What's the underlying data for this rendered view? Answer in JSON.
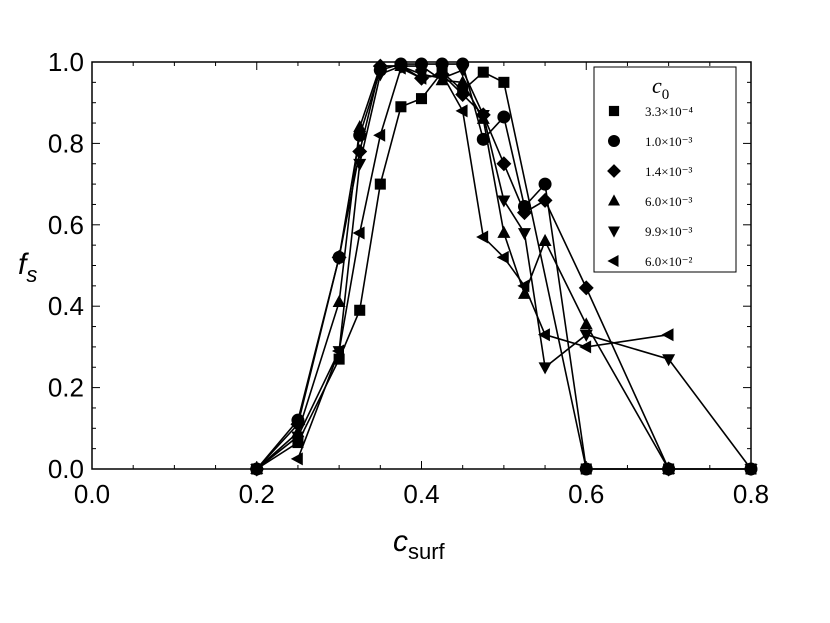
{
  "chart_data": {
    "type": "line",
    "xlabel_main": "c",
    "xlabel_sub": "surf",
    "ylabel_main": "f",
    "ylabel_sub": "s",
    "xlim": [
      0.0,
      0.8
    ],
    "ylim": [
      0.0,
      1.0
    ],
    "x_ticks": [
      "0.0",
      "0.2",
      "0.4",
      "0.6",
      "0.8"
    ],
    "y_ticks": [
      "0.0",
      "0.2",
      "0.4",
      "0.6",
      "0.8",
      "1.0"
    ],
    "grid": false,
    "legend_position": "top-right",
    "legend_title_main": "c",
    "legend_title_sub": "0",
    "series": [
      {
        "name": "3.3×10⁻⁴",
        "marker": "square",
        "x": [
          0.2,
          0.25,
          0.3,
          0.325,
          0.35,
          0.375,
          0.4,
          0.425,
          0.45,
          0.475,
          0.5,
          0.6,
          0.7,
          0.8
        ],
        "y": [
          0.0,
          0.065,
          0.27,
          0.39,
          0.7,
          0.89,
          0.91,
          0.975,
          0.93,
          0.975,
          0.95,
          0.0,
          0.0,
          0.0
        ]
      },
      {
        "name": "1.0×10⁻³",
        "marker": "circle",
        "x": [
          0.2,
          0.25,
          0.3,
          0.325,
          0.35,
          0.375,
          0.4,
          0.425,
          0.45,
          0.475,
          0.5,
          0.525,
          0.55,
          0.6,
          0.7,
          0.8
        ],
        "y": [
          0.0,
          0.12,
          0.52,
          0.82,
          0.98,
          0.995,
          0.995,
          0.995,
          0.995,
          0.81,
          0.865,
          0.645,
          0.7,
          0.0,
          0.0,
          0.0
        ]
      },
      {
        "name": "1.4×10⁻³",
        "marker": "diamond",
        "x": [
          0.2,
          0.25,
          0.3,
          0.325,
          0.35,
          0.375,
          0.4,
          0.425,
          0.45,
          0.475,
          0.5,
          0.525,
          0.55,
          0.6,
          0.7
        ],
        "y": [
          0.0,
          0.11,
          0.52,
          0.78,
          0.99,
          0.99,
          0.96,
          0.97,
          0.92,
          0.87,
          0.75,
          0.63,
          0.66,
          0.445,
          0.0
        ]
      },
      {
        "name": "6.0×10⁻³",
        "marker": "triangle-up",
        "x": [
          0.2,
          0.25,
          0.3,
          0.325,
          0.35,
          0.375,
          0.4,
          0.425,
          0.45,
          0.475,
          0.5,
          0.525,
          0.55,
          0.6,
          0.7
        ],
        "y": [
          0.0,
          0.09,
          0.41,
          0.84,
          0.99,
          0.99,
          0.99,
          0.955,
          0.95,
          0.86,
          0.58,
          0.43,
          0.56,
          0.355,
          0.0
        ]
      },
      {
        "name": "9.9×10⁻³",
        "marker": "triangle-down",
        "x": [
          0.2,
          0.25,
          0.3,
          0.325,
          0.35,
          0.375,
          0.4,
          0.425,
          0.45,
          0.475,
          0.5,
          0.525,
          0.55,
          0.6,
          0.7,
          0.8
        ],
        "y": [
          0.0,
          0.08,
          0.29,
          0.75,
          0.97,
          0.99,
          0.97,
          0.96,
          0.98,
          0.87,
          0.66,
          0.58,
          0.25,
          0.33,
          0.27,
          0.0
        ]
      },
      {
        "name": "6.0×10⁻²",
        "marker": "triangle-left",
        "x": [
          0.25,
          0.3,
          0.325,
          0.35,
          0.375,
          0.4,
          0.425,
          0.45,
          0.475,
          0.5,
          0.525,
          0.55,
          0.6,
          0.7
        ],
        "y": [
          0.025,
          0.29,
          0.58,
          0.82,
          0.985,
          0.96,
          0.97,
          0.88,
          0.57,
          0.52,
          0.45,
          0.33,
          0.3,
          0.33
        ]
      }
    ]
  }
}
